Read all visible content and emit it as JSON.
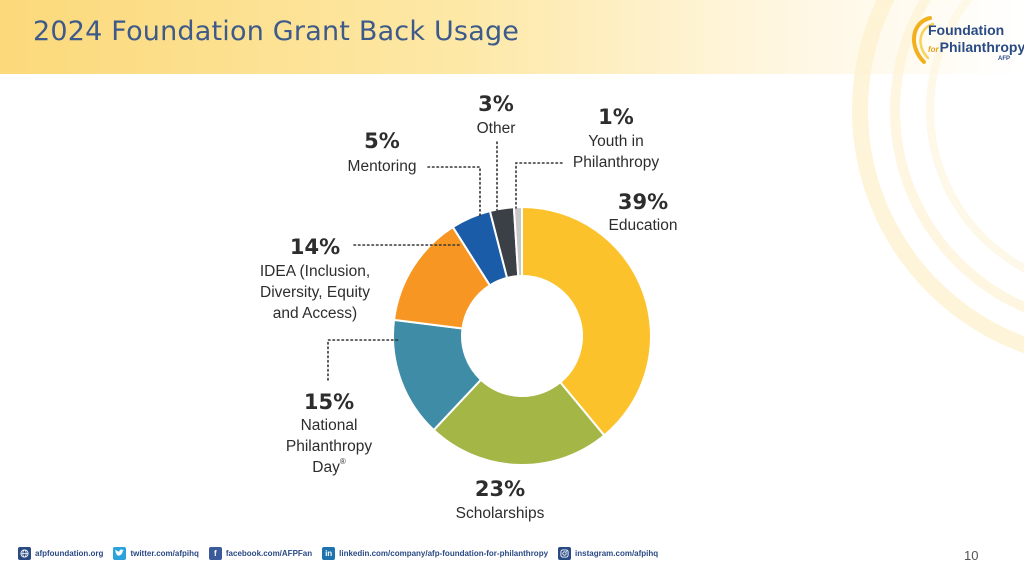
{
  "slide": {
    "title": "2024 Foundation Grant Back Usage",
    "page_number": "10"
  },
  "logo": {
    "line1": "Foundation",
    "line2_prefix": "for",
    "line2": "Philanthropy",
    "tagline": "AFP"
  },
  "footer": {
    "links": [
      {
        "icon": "globe-icon",
        "text": "afpfoundation.org"
      },
      {
        "icon": "twitter-icon",
        "text": "twitter.com/afpihq"
      },
      {
        "icon": "facebook-icon",
        "text": "facebook.com/AFPFan"
      },
      {
        "icon": "linkedin-icon",
        "text": "linkedin.com/company/afp-foundation-for-philanthropy"
      },
      {
        "icon": "instagram-icon",
        "text": "instagram.com/afpihq"
      }
    ]
  },
  "colors": {
    "education": "#fbc22b",
    "scholarships": "#a3b646",
    "national_philanthropy_day": "#3e8ca6",
    "idea": "#f79622",
    "mentoring": "#1a5ca8",
    "other": "#3b3f46",
    "youth": "#c7c7c7",
    "title": "#3d5a8a",
    "brand_blue": "#2a4a84"
  },
  "chart_data": {
    "type": "pie",
    "style": "donut",
    "title": "2024 Foundation Grant Back Usage",
    "categories": [
      "Education",
      "Scholarships",
      "National Philanthropy Day",
      "IDEA (Inclusion, Diversity, Equity and Access)",
      "Mentoring",
      "Other",
      "Youth in Philanthropy"
    ],
    "values": [
      39,
      23,
      15,
      14,
      5,
      3,
      1
    ],
    "unit": "%",
    "slices": [
      {
        "key": "education",
        "pct": "39%",
        "label_lines": [
          "Education"
        ],
        "value": 39
      },
      {
        "key": "scholarships",
        "pct": "23%",
        "label_lines": [
          "Scholarships"
        ],
        "value": 23
      },
      {
        "key": "national_philanthropy_day",
        "pct": "15%",
        "label_lines": [
          "National",
          "Philanthropy",
          "Day"
        ],
        "superscript": "®",
        "value": 15
      },
      {
        "key": "idea",
        "pct": "14%",
        "label_lines": [
          "IDEA (Inclusion,",
          "Diversity, Equity",
          "and Access)"
        ],
        "value": 14
      },
      {
        "key": "mentoring",
        "pct": "5%",
        "label_lines": [
          "Mentoring"
        ],
        "value": 5
      },
      {
        "key": "other",
        "pct": "3%",
        "label_lines": [
          "Other"
        ],
        "value": 3
      },
      {
        "key": "youth",
        "pct": "1%",
        "label_lines": [
          "Youth in",
          "Philanthropy"
        ],
        "value": 1
      }
    ]
  }
}
